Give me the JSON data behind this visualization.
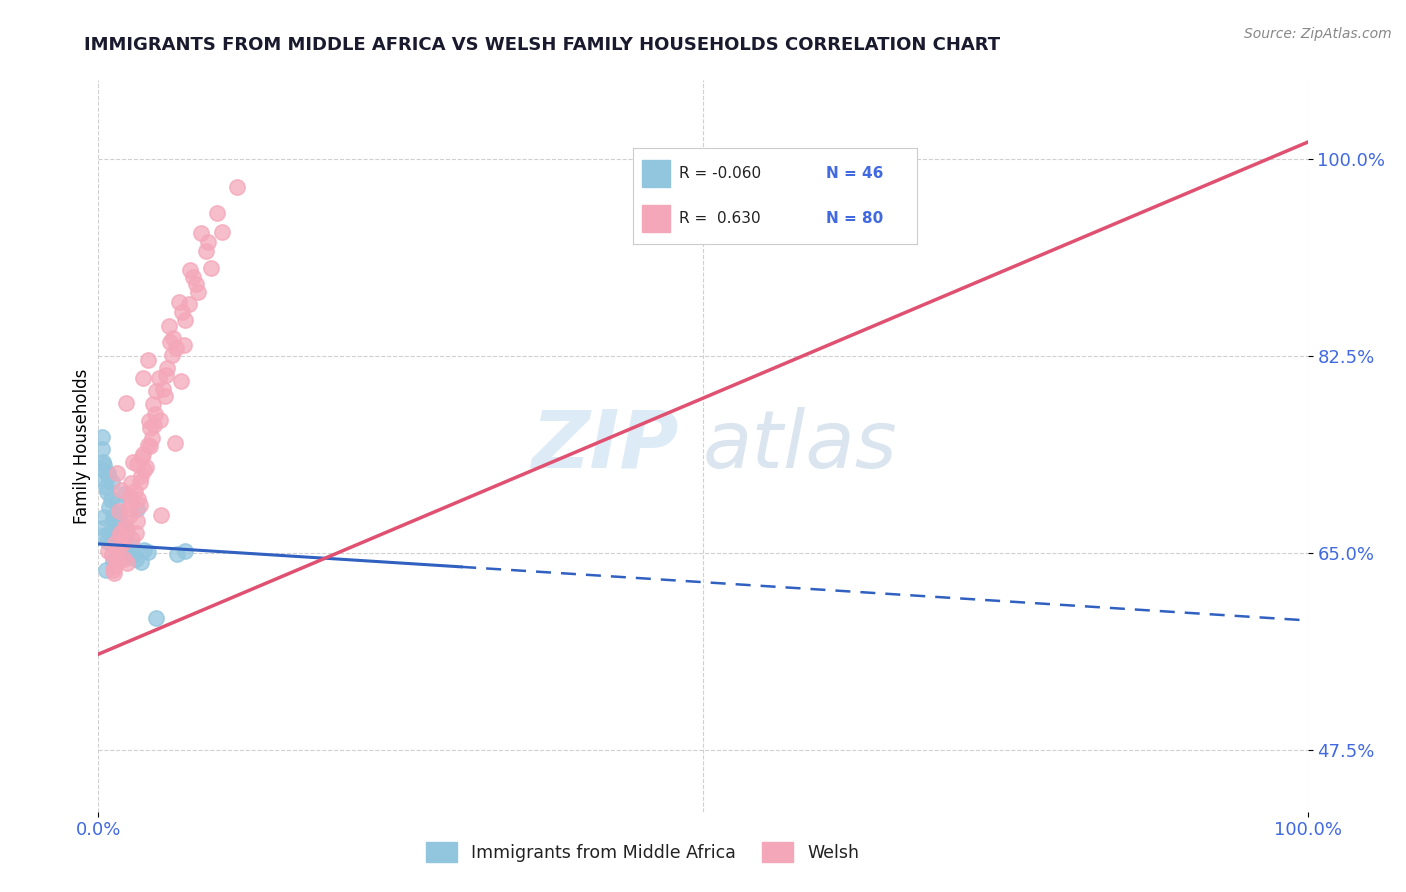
{
  "title": "IMMIGRANTS FROM MIDDLE AFRICA VS WELSH FAMILY HOUSEHOLDS CORRELATION CHART",
  "source_text": "Source: ZipAtlas.com",
  "ylabel": "Family Households",
  "xlim": [
    0,
    100
  ],
  "ylim": [
    42,
    107
  ],
  "yticks": [
    47.5,
    65.0,
    82.5,
    100.0
  ],
  "xtick_labels": [
    "0.0%",
    "100.0%"
  ],
  "ytick_labels": [
    "47.5%",
    "65.0%",
    "82.5%",
    "100.0%"
  ],
  "blue_color": "#92c5de",
  "pink_color": "#f4a7b9",
  "blue_line_color": "#3060c0",
  "pink_line_color": "#e05070",
  "r1": -0.06,
  "n1": 46,
  "r2": 0.63,
  "n2": 80,
  "blue_trend_x0": 0,
  "blue_trend_y0": 65.8,
  "blue_trend_x1": 100,
  "blue_trend_y1": 59.0,
  "blue_solid_end_x": 30,
  "pink_trend_x0": 0,
  "pink_trend_y0": 56.0,
  "pink_trend_x1": 100,
  "pink_trend_y1": 101.5,
  "blue_scatter_x": [
    0.3,
    0.5,
    0.8,
    1.0,
    1.2,
    1.5,
    0.4,
    0.6,
    0.9,
    1.8,
    2.1,
    3.2,
    0.7,
    1.1,
    2.5,
    0.2,
    1.9,
    3.5,
    0.4,
    2.8,
    1.6,
    0.3,
    2.2,
    1.0,
    0.8,
    4.1,
    1.4,
    0.6,
    2.9,
    1.7,
    0.5,
    1.1,
    3.8,
    0.9,
    2.4,
    1.3,
    7.2,
    0.4,
    2.0,
    1.5,
    0.7,
    3.1,
    6.5,
    0.3,
    1.2,
    4.8
  ],
  "blue_scatter_y": [
    66.5,
    68.2,
    72.1,
    65.8,
    64.3,
    69.4,
    67.2,
    63.5,
    66.8,
    65.4,
    70.2,
    68.9,
    66.1,
    71.3,
    64.7,
    72.5,
    65.9,
    64.2,
    73.1,
    65.6,
    67.8,
    74.2,
    66.3,
    69.7,
    71.8,
    65.1,
    67.4,
    70.9,
    64.8,
    68.5,
    72.8,
    66.7,
    65.3,
    69.1,
    66.9,
    68.3,
    65.2,
    71.6,
    67.5,
    66.2,
    70.4,
    64.5,
    64.9,
    75.3,
    68.1,
    59.2
  ],
  "pink_scatter_x": [
    0.8,
    2.3,
    1.5,
    3.7,
    5.2,
    2.8,
    4.1,
    1.2,
    6.3,
    3.4,
    2.1,
    5.8,
    1.9,
    4.6,
    3.2,
    2.7,
    7.1,
    1.4,
    5.5,
    3.9,
    2.4,
    6.8,
    1.7,
    4.3,
    3.1,
    8.2,
    2.6,
    5.1,
    1.3,
    4.8,
    3.6,
    7.5,
    2.2,
    6.1,
    4.4,
    1.8,
    9.3,
    3.3,
    5.7,
    2.9,
    7.8,
    1.6,
    4.2,
    3.5,
    6.4,
    2.5,
    8.9,
    1.1,
    5.3,
    3.8,
    10.2,
    2.0,
    7.2,
    4.7,
    1.5,
    6.9,
    3.0,
    9.8,
    2.3,
    5.6,
    4.1,
    1.9,
    8.1,
    3.4,
    6.2,
    2.7,
    11.5,
    4.5,
    7.6,
    1.8,
    5.0,
    3.2,
    9.1,
    2.6,
    6.7,
    4.3,
    1.4,
    8.5,
    3.7,
    5.9
  ],
  "pink_scatter_y": [
    65.2,
    78.3,
    72.1,
    80.5,
    68.4,
    66.2,
    82.1,
    63.5,
    74.8,
    69.3,
    64.5,
    85.2,
    70.6,
    76.4,
    67.8,
    71.2,
    83.5,
    65.9,
    78.9,
    72.6,
    64.1,
    80.3,
    68.7,
    74.5,
    66.8,
    88.2,
    70.1,
    76.8,
    63.2,
    79.4,
    73.5,
    87.1,
    67.4,
    82.6,
    75.2,
    66.5,
    90.3,
    69.8,
    81.4,
    73.1,
    89.5,
    65.3,
    76.7,
    71.8,
    83.2,
    68.9,
    91.8,
    64.8,
    79.6,
    72.4,
    93.5,
    66.1,
    85.7,
    77.3,
    64.3,
    86.4,
    70.5,
    95.2,
    67.2,
    80.8,
    74.6,
    65.7,
    88.9,
    71.3,
    84.1,
    69.6,
    97.5,
    78.2,
    90.1,
    66.8,
    80.5,
    72.9,
    92.6,
    68.4,
    87.3,
    76.1,
    63.8,
    93.4,
    73.8,
    83.7
  ],
  "watermark_zip": "ZIP",
  "watermark_atlas": "atlas",
  "tick_label_color": "#4169E1",
  "grid_color": "#d0d0d0"
}
